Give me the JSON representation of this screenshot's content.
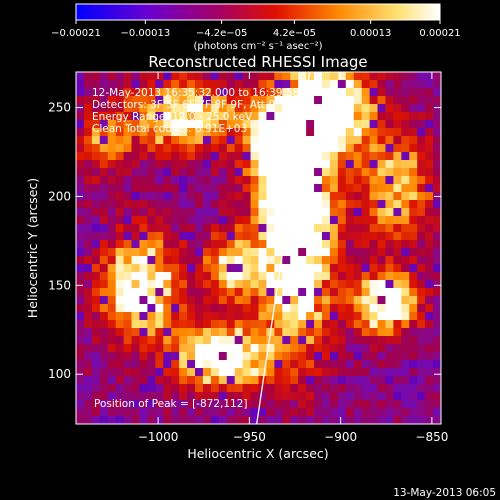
{
  "chart_data": {
    "type": "heatmap",
    "title": "Reconstructed RHESSI Image",
    "xlabel": "Heliocentric X (arcsec)",
    "ylabel": "Heliocentric Y (arcsec)",
    "xlim": [
      -1045,
      -845
    ],
    "ylim": [
      72,
      270
    ],
    "x_ticks": [
      -1000,
      -950,
      -900,
      -850
    ],
    "x_tick_labels": [
      "−1000",
      "−950",
      "−900",
      "−850"
    ],
    "y_ticks": [
      100,
      150,
      200,
      250
    ],
    "y_tick_labels": [
      "100",
      "150",
      "200",
      "250"
    ],
    "colorbar": {
      "range": [
        -0.00021,
        0.00021
      ],
      "ticks": [
        -0.00021,
        -0.00013,
        -4.2e-05,
        4.2e-05,
        0.00013,
        0.00021
      ],
      "tick_labels": [
        "−0.00021",
        "−0.00013",
        "−4.2e−05",
        "4.2e−05",
        "0.00013",
        "0.00021"
      ],
      "unit_label": "(photons cm⁻² s⁻¹ asec⁻²)",
      "colors": [
        "#0000ff",
        "#6a00d0",
        "#a80060",
        "#e01000",
        "#ff8800",
        "#ffe070",
        "#ffffff"
      ]
    },
    "limb_line": [
      [
        -946,
        72
      ],
      [
        -917,
        270
      ]
    ],
    "peak": [
      -872,
      112
    ]
  },
  "annotations": {
    "time_range": "12-May-2013 16:35:32.000 to 16:39:58.000",
    "detectors": "Detectors: 3F 5F 6F 7F 8F 9F, Att 0",
    "energy": "Energy Range: 12.0 - 25.0 keV",
    "clean": "Clean     Total counts: 6.91E+03",
    "peak_text": "Position of Peak = [-872,112]"
  },
  "footer": "13-May-2013 06:05"
}
